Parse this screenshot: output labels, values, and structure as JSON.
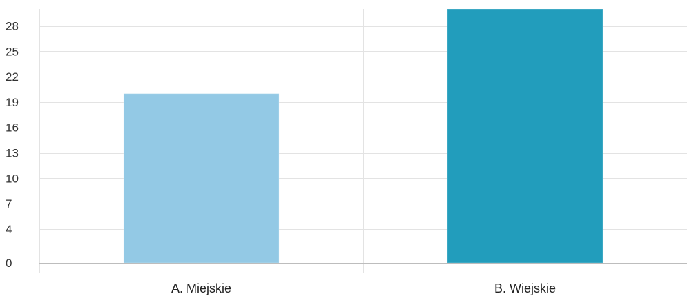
{
  "chart_data": {
    "type": "bar",
    "categories": [
      "A. Miejskie",
      "B. Wiejskie"
    ],
    "values": [
      20,
      30
    ],
    "colors": [
      "#93C9E5",
      "#229DBC"
    ],
    "yticks": [
      0,
      4,
      7,
      10,
      13,
      16,
      19,
      22,
      25,
      28
    ],
    "ylim": [
      0,
      30
    ],
    "title": "",
    "xlabel": "",
    "ylabel": "",
    "grid": true,
    "legend": "none"
  }
}
